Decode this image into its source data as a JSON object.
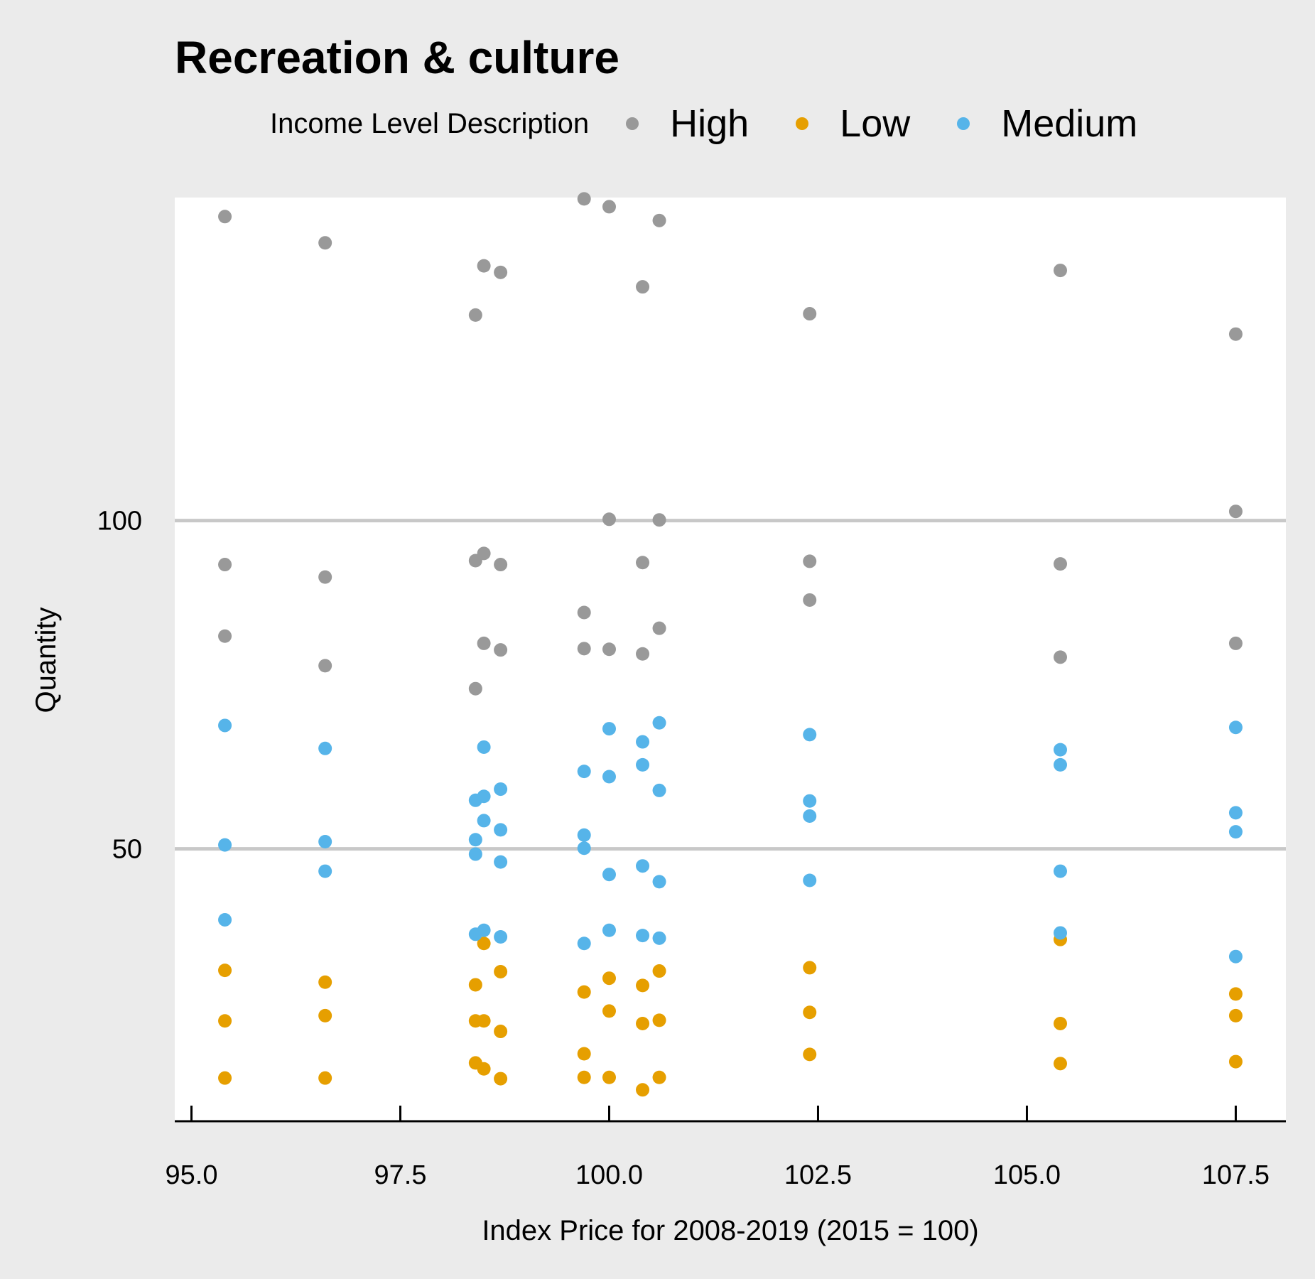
{
  "chart_data": {
    "type": "scatter",
    "title": "Recreation & culture",
    "xlabel": "Index Price for 2008-2019 (2015 = 100)",
    "ylabel": "Quantity",
    "xlim": [
      94.8,
      108.1
    ],
    "ylim": [
      8.3,
      149.2
    ],
    "x_ticks": [
      95.0,
      97.5,
      100.0,
      102.5,
      105.0,
      107.5
    ],
    "x_tick_labels": [
      "95.0",
      "97.5",
      "100.0",
      "102.5",
      "105.0",
      "107.5"
    ],
    "y_ticks": [
      50,
      100
    ],
    "y_tick_labels": [
      "50",
      "100"
    ],
    "grid": "horizontal major only",
    "legend": {
      "title": "Income Level Description",
      "position": "top"
    },
    "series": [
      {
        "name": "High",
        "color": "#999999",
        "points": [
          [
            95.4,
            146.3
          ],
          [
            95.4,
            93.3
          ],
          [
            95.4,
            82.4
          ],
          [
            96.6,
            142.3
          ],
          [
            96.6,
            91.4
          ],
          [
            96.6,
            77.9
          ],
          [
            98.4,
            131.3
          ],
          [
            98.4,
            93.9
          ],
          [
            98.4,
            74.4
          ],
          [
            98.5,
            138.8
          ],
          [
            98.5,
            95.0
          ],
          [
            98.5,
            81.3
          ],
          [
            98.7,
            137.8
          ],
          [
            98.7,
            93.3
          ],
          [
            98.7,
            80.3
          ],
          [
            99.7,
            149.0
          ],
          [
            99.7,
            86.0
          ],
          [
            99.7,
            80.5
          ],
          [
            100.0,
            147.8
          ],
          [
            100.0,
            100.2
          ],
          [
            100.0,
            80.4
          ],
          [
            100.4,
            135.6
          ],
          [
            100.4,
            93.6
          ],
          [
            100.4,
            79.7
          ],
          [
            100.6,
            145.7
          ],
          [
            100.6,
            100.1
          ],
          [
            100.6,
            83.6
          ],
          [
            102.4,
            131.5
          ],
          [
            102.4,
            93.8
          ],
          [
            102.4,
            87.9
          ],
          [
            105.4,
            138.1
          ],
          [
            105.4,
            93.4
          ],
          [
            105.4,
            79.2
          ],
          [
            107.5,
            128.4
          ],
          [
            107.5,
            101.4
          ],
          [
            107.5,
            81.3
          ]
        ]
      },
      {
        "name": "Low",
        "color": "#E69F00",
        "points": [
          [
            95.4,
            31.5
          ],
          [
            95.4,
            23.8
          ],
          [
            95.4,
            15.1
          ],
          [
            96.6,
            29.7
          ],
          [
            96.6,
            24.6
          ],
          [
            96.6,
            15.1
          ],
          [
            98.4,
            29.3
          ],
          [
            98.4,
            23.8
          ],
          [
            98.4,
            17.4
          ],
          [
            98.5,
            35.6
          ],
          [
            98.5,
            23.8
          ],
          [
            98.5,
            16.5
          ],
          [
            98.7,
            31.3
          ],
          [
            98.7,
            22.2
          ],
          [
            98.7,
            15.0
          ],
          [
            99.7,
            28.2
          ],
          [
            99.7,
            18.8
          ],
          [
            99.7,
            15.2
          ],
          [
            100.0,
            30.3
          ],
          [
            100.0,
            25.3
          ],
          [
            100.0,
            15.2
          ],
          [
            100.4,
            29.2
          ],
          [
            100.4,
            23.4
          ],
          [
            100.4,
            13.3
          ],
          [
            100.6,
            31.4
          ],
          [
            100.6,
            23.9
          ],
          [
            100.6,
            15.2
          ],
          [
            102.4,
            31.9
          ],
          [
            102.4,
            25.1
          ],
          [
            102.4,
            18.7
          ],
          [
            105.4,
            36.2
          ],
          [
            105.4,
            23.4
          ],
          [
            105.4,
            17.3
          ],
          [
            107.5,
            27.9
          ],
          [
            107.5,
            24.6
          ],
          [
            107.5,
            17.6
          ]
        ]
      },
      {
        "name": "Medium",
        "color": "#56B4E9",
        "points": [
          [
            95.4,
            68.8
          ],
          [
            95.4,
            50.6
          ],
          [
            95.4,
            39.2
          ],
          [
            96.6,
            65.3
          ],
          [
            96.6,
            51.1
          ],
          [
            96.6,
            46.6
          ],
          [
            98.4,
            57.4
          ],
          [
            98.4,
            51.4
          ],
          [
            98.4,
            49.2
          ],
          [
            98.4,
            37.0
          ],
          [
            98.5,
            65.5
          ],
          [
            98.5,
            58.0
          ],
          [
            98.5,
            54.3
          ],
          [
            98.5,
            37.6
          ],
          [
            98.7,
            59.1
          ],
          [
            98.7,
            52.9
          ],
          [
            98.7,
            48.0
          ],
          [
            98.7,
            36.6
          ],
          [
            99.7,
            61.8
          ],
          [
            99.7,
            52.1
          ],
          [
            99.7,
            50.1
          ],
          [
            99.7,
            35.6
          ],
          [
            100.0,
            68.3
          ],
          [
            100.0,
            61.0
          ],
          [
            100.0,
            46.1
          ],
          [
            100.0,
            37.6
          ],
          [
            100.4,
            66.3
          ],
          [
            100.4,
            62.8
          ],
          [
            100.4,
            47.4
          ],
          [
            100.4,
            36.8
          ],
          [
            100.6,
            69.2
          ],
          [
            100.6,
            58.9
          ],
          [
            100.6,
            45.0
          ],
          [
            100.6,
            36.4
          ],
          [
            102.4,
            67.4
          ],
          [
            102.4,
            57.3
          ],
          [
            102.4,
            55.0
          ],
          [
            102.4,
            45.2
          ],
          [
            105.4,
            65.1
          ],
          [
            105.4,
            62.8
          ],
          [
            105.4,
            46.6
          ],
          [
            105.4,
            37.2
          ],
          [
            107.5,
            68.5
          ],
          [
            107.5,
            55.5
          ],
          [
            107.5,
            52.6
          ],
          [
            107.5,
            33.6
          ]
        ]
      }
    ]
  }
}
